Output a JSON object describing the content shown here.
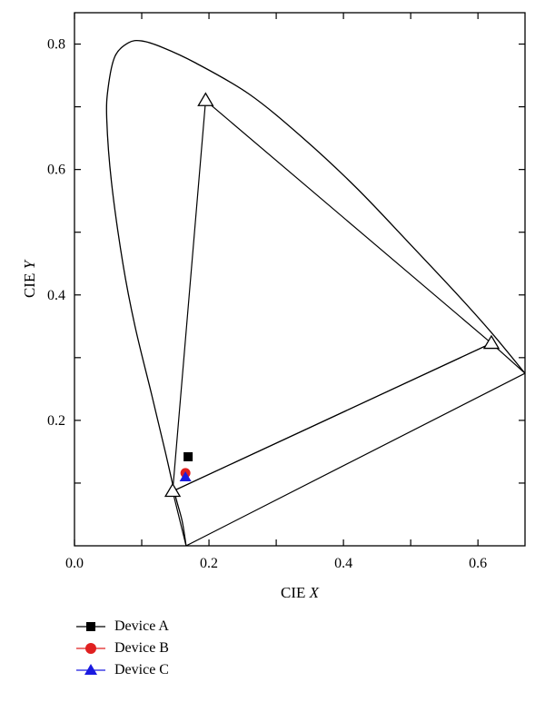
{
  "chart_data": {
    "type": "scatter",
    "title": "",
    "xlabel_prefix": "CIE ",
    "xlabel_var": "X",
    "ylabel_prefix": "CIE ",
    "ylabel_var": "Y",
    "xlim": [
      0.0,
      0.67
    ],
    "ylim": [
      0.0,
      0.85
    ],
    "xticks": [
      0.0,
      0.2,
      0.4,
      0.6
    ],
    "xtick_labels": [
      "0.0",
      "0.2",
      "0.4",
      "0.6"
    ],
    "yticks": [
      0.2,
      0.4,
      0.6,
      0.8
    ],
    "ytick_labels": [
      "0.2",
      "0.4",
      "0.6",
      "0.8"
    ],
    "grid": false,
    "legend_position": "bottom-left",
    "spectral_locus": [
      [
        0.166,
        0.0
      ],
      [
        0.16,
        0.04
      ],
      [
        0.15,
        0.08
      ],
      [
        0.135,
        0.15
      ],
      [
        0.115,
        0.24
      ],
      [
        0.09,
        0.35
      ],
      [
        0.072,
        0.45
      ],
      [
        0.055,
        0.58
      ],
      [
        0.048,
        0.68
      ],
      [
        0.05,
        0.73
      ],
      [
        0.06,
        0.78
      ],
      [
        0.08,
        0.802
      ],
      [
        0.1,
        0.805
      ],
      [
        0.13,
        0.795
      ],
      [
        0.18,
        0.77
      ],
      [
        0.26,
        0.72
      ],
      [
        0.34,
        0.65
      ],
      [
        0.42,
        0.57
      ],
      [
        0.5,
        0.48
      ],
      [
        0.57,
        0.4
      ],
      [
        0.62,
        0.34
      ],
      [
        0.67,
        0.275
      ]
    ],
    "gamut_triangle": [
      [
        0.195,
        0.71
      ],
      [
        0.62,
        0.323
      ],
      [
        0.146,
        0.087
      ]
    ],
    "rgb_rect": [
      [
        0.146,
        0.087
      ],
      [
        0.62,
        0.323
      ],
      [
        0.67,
        0.275
      ],
      [
        0.166,
        0.0
      ]
    ],
    "series": [
      {
        "name": "Device A",
        "marker": "square",
        "color": "#000000",
        "x": [
          0.169
        ],
        "y": [
          0.142
        ]
      },
      {
        "name": "Device B",
        "marker": "circle",
        "color": "#e02020",
        "x": [
          0.165
        ],
        "y": [
          0.116
        ]
      },
      {
        "name": "Device C",
        "marker": "triangle",
        "color": "#1a1ae0",
        "x": [
          0.165
        ],
        "y": [
          0.11
        ]
      }
    ]
  }
}
